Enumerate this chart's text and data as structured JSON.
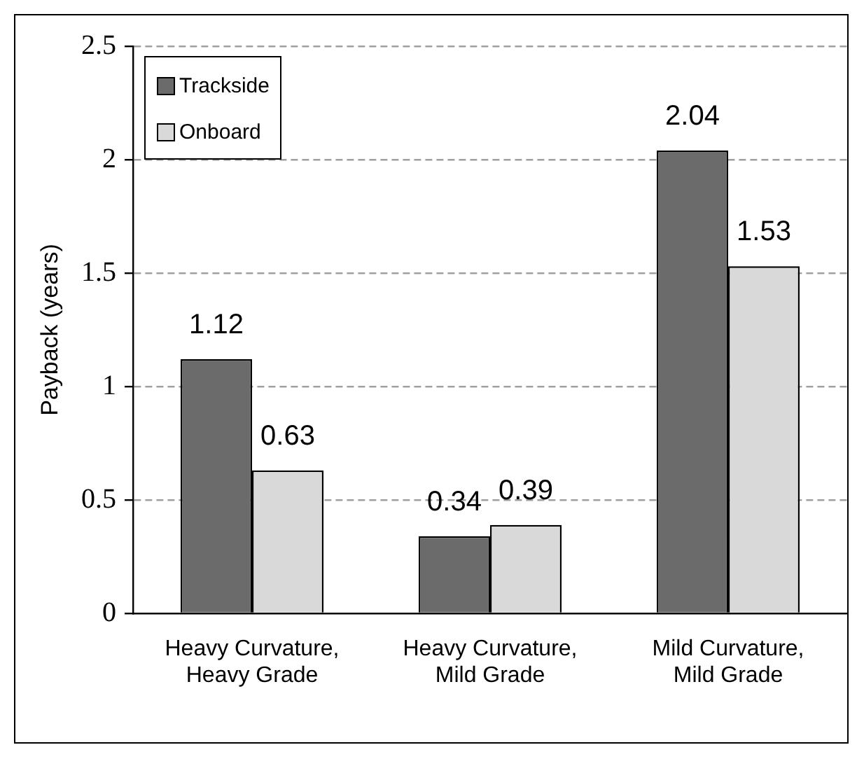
{
  "chart_data": {
    "type": "bar",
    "ylabel": "Payback (years)",
    "categories": [
      "Heavy Curvature, Heavy Grade",
      "Heavy Curvature, Mild Grade",
      "Mild Curvature, Mild Grade"
    ],
    "series": [
      {
        "name": "Trackside",
        "color": "#6b6b6b",
        "values": [
          1.12,
          0.34,
          2.04
        ]
      },
      {
        "name": "Onboard",
        "color": "#d9d9d9",
        "values": [
          0.63,
          0.39,
          1.53
        ]
      }
    ],
    "ylim": [
      0,
      2.5
    ],
    "yticks": [
      0,
      0.5,
      1,
      1.5,
      2,
      2.5
    ],
    "grid": "y",
    "legend": "top left",
    "data_labels": true
  }
}
